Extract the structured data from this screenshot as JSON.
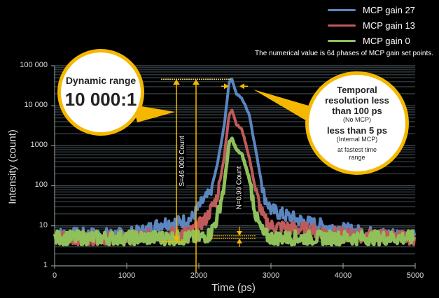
{
  "chart_data": {
    "type": "line",
    "title": "",
    "xlabel": "Time (ps)",
    "ylabel": "Intensity (count)",
    "xlim": [
      0,
      5000
    ],
    "ylim": [
      1,
      100000
    ],
    "yscale": "log",
    "x_ticks": [
      "0",
      "1000",
      "2000",
      "3000",
      "4000",
      "5000"
    ],
    "y_ticks": [
      "1",
      "10",
      "100",
      "1000",
      "10 000",
      "100 000"
    ],
    "grid": true,
    "legend_position": "top-right",
    "series": [
      {
        "name": "MCP gain 27",
        "color": "#5b86c0",
        "x": [
          0,
          500,
          1000,
          1200,
          1500,
          1700,
          1900,
          2050,
          2150,
          2250,
          2350,
          2420,
          2460,
          2520,
          2600,
          2700,
          2800,
          2900,
          3000,
          3200,
          3500,
          4000,
          4500,
          5000
        ],
        "y": [
          6,
          6,
          6,
          7,
          12,
          12,
          15,
          40,
          60,
          300,
          3000,
          40000,
          46000,
          20000,
          15000,
          6000,
          600,
          60,
          25,
          18,
          12,
          8,
          6,
          6
        ]
      },
      {
        "name": "MCP gain 13",
        "color": "#c15a5a",
        "x": [
          0,
          500,
          1000,
          1500,
          1900,
          2100,
          2250,
          2350,
          2420,
          2460,
          2520,
          2600,
          2700,
          2800,
          2900,
          3000,
          3500,
          4000,
          5000
        ],
        "y": [
          5,
          5,
          5,
          6,
          7,
          15,
          50,
          500,
          6000,
          8000,
          3500,
          2500,
          500,
          60,
          15,
          10,
          8,
          6,
          5
        ]
      },
      {
        "name": "MCP gain 0",
        "color": "#8fc05a",
        "x": [
          0,
          500,
          1000,
          1500,
          2000,
          2150,
          2250,
          2350,
          2420,
          2460,
          2520,
          2600,
          2700,
          2800,
          2900,
          3000,
          4000,
          5000
        ],
        "y": [
          5,
          5,
          5,
          5,
          5,
          6,
          15,
          100,
          1200,
          1500,
          800,
          600,
          150,
          15,
          6,
          5,
          5,
          5
        ]
      }
    ],
    "annotations": {
      "signal": "S=46 000 Count",
      "noise": "N=0.99 Count",
      "note": "The numerical value is 64 phases of MCP gain set points."
    }
  },
  "legend": [
    {
      "label": "MCP gain 27",
      "color": "#5b86c0"
    },
    {
      "label": "MCP gain 13",
      "color": "#c15a5a"
    },
    {
      "label": "MCP gain 0",
      "color": "#8fc05a"
    }
  ],
  "note": "The numerical value is 64 phases of MCP gain set points.",
  "bubble_dynamic": {
    "title": "Dynamic range",
    "value": "10 000:1"
  },
  "bubble_temporal": {
    "line1": "Temporal",
    "line2": "resolution less",
    "line3": "than 100 ps",
    "line4": "(No MCP)",
    "line5": "less than 5 ps",
    "line6": "(Internal MCP)",
    "line7": "at fastest time",
    "line8": "range"
  },
  "accent_color": "#f5b800"
}
